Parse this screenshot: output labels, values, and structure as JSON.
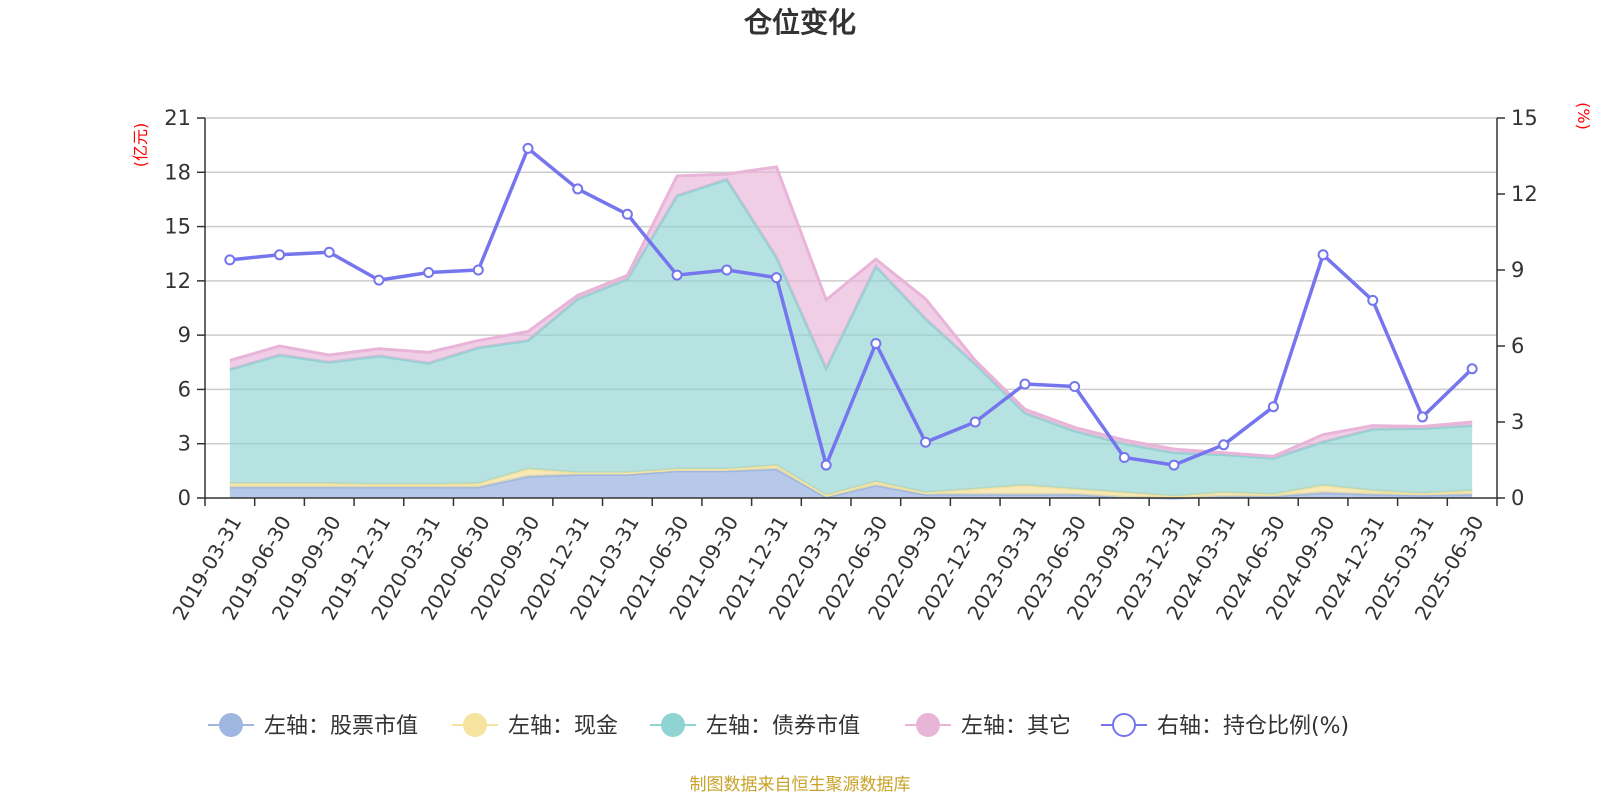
{
  "chart_data": {
    "type": "area",
    "title": "仓位变化",
    "left_axis_unit": "(亿元)",
    "right_axis_unit": "(%)",
    "left_ylim": [
      0,
      21
    ],
    "left_ticks": [
      "0",
      "3",
      "6",
      "9",
      "12",
      "15",
      "18",
      "21"
    ],
    "right_ylim": [
      0,
      15
    ],
    "right_ticks": [
      "0",
      "3",
      "6",
      "9",
      "12",
      "15"
    ],
    "grid": true,
    "legend_position": "bottom",
    "categories": [
      "2019-03-31",
      "2019-06-30",
      "2019-09-30",
      "2019-12-31",
      "2020-03-31",
      "2020-06-30",
      "2020-09-30",
      "2020-12-31",
      "2021-03-31",
      "2021-06-30",
      "2021-09-30",
      "2021-12-31",
      "2022-03-31",
      "2022-06-30",
      "2022-09-30",
      "2022-12-31",
      "2023-03-31",
      "2023-06-30",
      "2023-09-30",
      "2023-12-31",
      "2024-03-31",
      "2024-06-30",
      "2024-09-30",
      "2024-12-31",
      "2025-03-31",
      "2025-06-30"
    ],
    "series": [
      {
        "name": "左轴：股票市值",
        "axis": "left",
        "type": "stacked-area",
        "color": "#9fb7e0",
        "values": [
          0.6,
          0.6,
          0.6,
          0.6,
          0.6,
          0.6,
          1.2,
          1.3,
          1.3,
          1.5,
          1.5,
          1.6,
          0.05,
          0.7,
          0.2,
          0.2,
          0.2,
          0.2,
          0.05,
          0.0,
          0.1,
          0.1,
          0.3,
          0.2,
          0.15,
          0.2
        ]
      },
      {
        "name": "左轴：现金",
        "axis": "left",
        "type": "stacked-area",
        "color": "#f5e3a0",
        "values": [
          0.2,
          0.2,
          0.2,
          0.15,
          0.15,
          0.2,
          0.4,
          0.1,
          0.1,
          0.1,
          0.1,
          0.2,
          0.1,
          0.2,
          0.1,
          0.3,
          0.5,
          0.3,
          0.25,
          0.1,
          0.2,
          0.1,
          0.4,
          0.2,
          0.1,
          0.2
        ]
      },
      {
        "name": "左轴：债券市值",
        "axis": "left",
        "type": "stacked-area",
        "color": "#8fd3d3",
        "values": [
          6.3,
          7.1,
          6.7,
          7.1,
          6.7,
          7.5,
          7.1,
          9.6,
          10.7,
          15.1,
          16.0,
          11.5,
          7.0,
          11.9,
          9.6,
          6.9,
          4.0,
          3.2,
          2.7,
          2.4,
          2.1,
          2.0,
          2.4,
          3.4,
          3.6,
          3.6
        ]
      },
      {
        "name": "左轴：其它",
        "axis": "left",
        "type": "stacked-area",
        "color": "#e8b4d8",
        "values": [
          0.5,
          0.5,
          0.4,
          0.4,
          0.6,
          0.4,
          0.5,
          0.2,
          0.2,
          1.1,
          0.3,
          5.0,
          3.8,
          0.4,
          1.1,
          0.2,
          0.2,
          0.2,
          0.2,
          0.2,
          0.1,
          0.1,
          0.4,
          0.2,
          0.1,
          0.2
        ]
      },
      {
        "name": "右轴：持仓比例(%)",
        "axis": "right",
        "type": "line",
        "color": "#7575ee",
        "values": [
          9.4,
          9.6,
          9.7,
          8.6,
          8.9,
          9.0,
          13.8,
          12.2,
          11.2,
          8.8,
          9.0,
          8.7,
          1.3,
          6.1,
          2.2,
          3.0,
          4.5,
          4.4,
          1.6,
          1.3,
          2.1,
          3.6,
          9.6,
          7.8,
          3.2,
          5.1
        ]
      }
    ]
  },
  "footer": {
    "source": "制图数据来自恒生聚源数据库"
  }
}
